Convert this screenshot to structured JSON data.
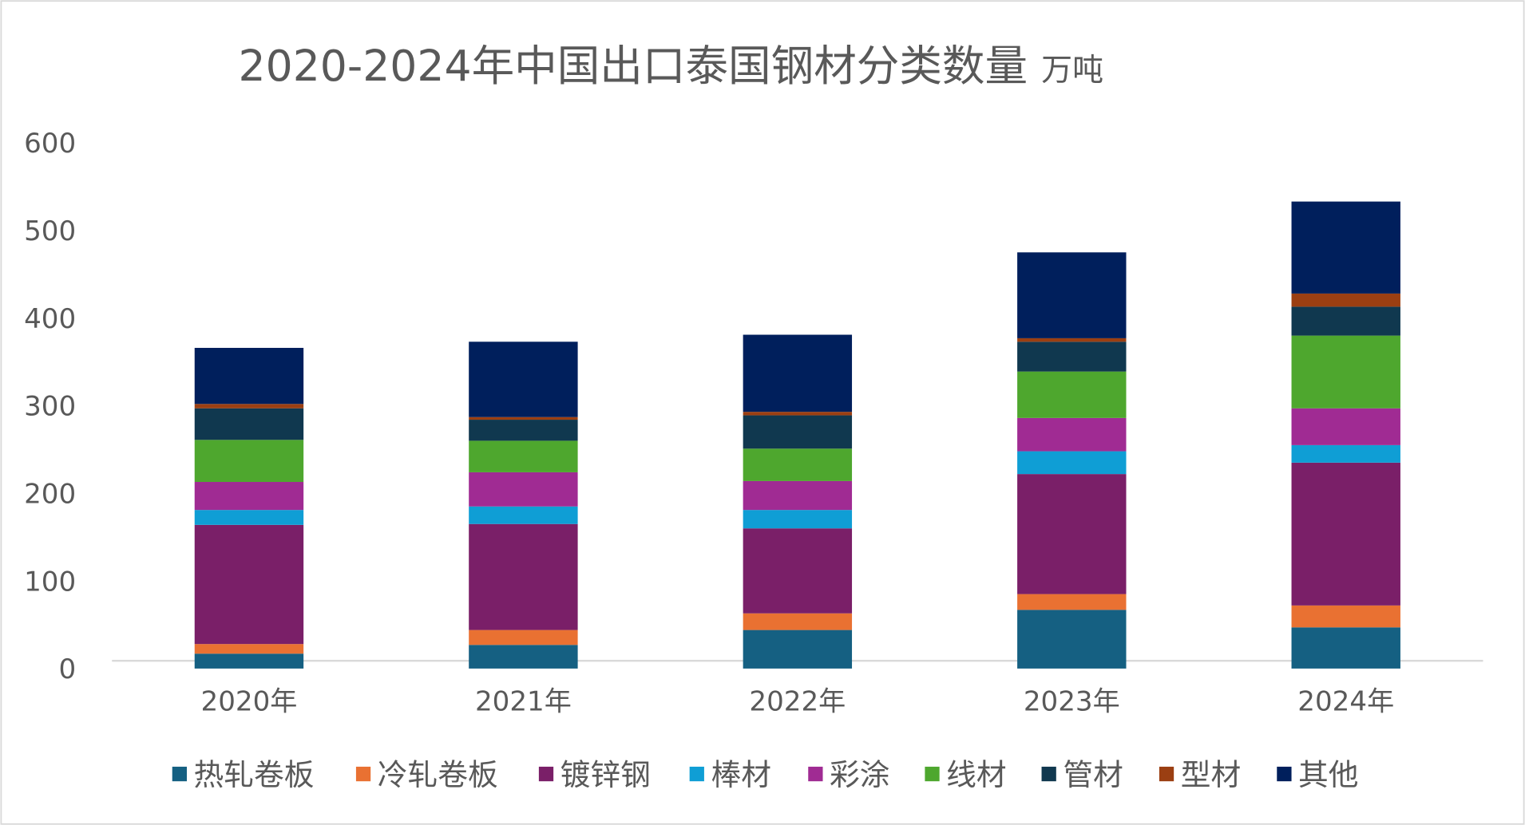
{
  "chart_data": {
    "type": "bar",
    "stacked": true,
    "title": "2020-2024年中国出口泰国钢材分类数量",
    "unit": "万吨",
    "xlabel": "",
    "ylabel": "",
    "ylim": [
      0,
      600
    ],
    "yticks": [
      0,
      100,
      200,
      300,
      400,
      500,
      600
    ],
    "grid": false,
    "legend_position": "bottom",
    "categories": [
      "2020年",
      "2021年",
      "2022年",
      "2023年",
      "2024年"
    ],
    "series": [
      {
        "name": "热轧卷板",
        "color": "#156082",
        "values": [
          17,
          27,
          44,
          67,
          47
        ]
      },
      {
        "name": "冷轧卷板",
        "color": "#E97132",
        "values": [
          11,
          17,
          19,
          18,
          25
        ]
      },
      {
        "name": "镀锌钢",
        "color": "#7A1F68",
        "values": [
          136,
          121,
          97,
          137,
          163
        ]
      },
      {
        "name": "棒材",
        "color": "#0F9ED5",
        "values": [
          17,
          20,
          21,
          26,
          20
        ]
      },
      {
        "name": "彩涂",
        "color": "#A02B93",
        "values": [
          32,
          39,
          33,
          38,
          42
        ]
      },
      {
        "name": "线材",
        "color": "#4EA72E",
        "values": [
          48,
          36,
          37,
          53,
          83
        ]
      },
      {
        "name": "管材",
        "color": "#10384F",
        "values": [
          36,
          24,
          38,
          34,
          33
        ]
      },
      {
        "name": "型材",
        "color": "#9B3F12",
        "values": [
          5,
          3,
          4,
          4,
          15
        ]
      },
      {
        "name": "其他",
        "color": "#001F5C",
        "values": [
          64,
          86,
          88,
          98,
          105
        ]
      }
    ]
  }
}
